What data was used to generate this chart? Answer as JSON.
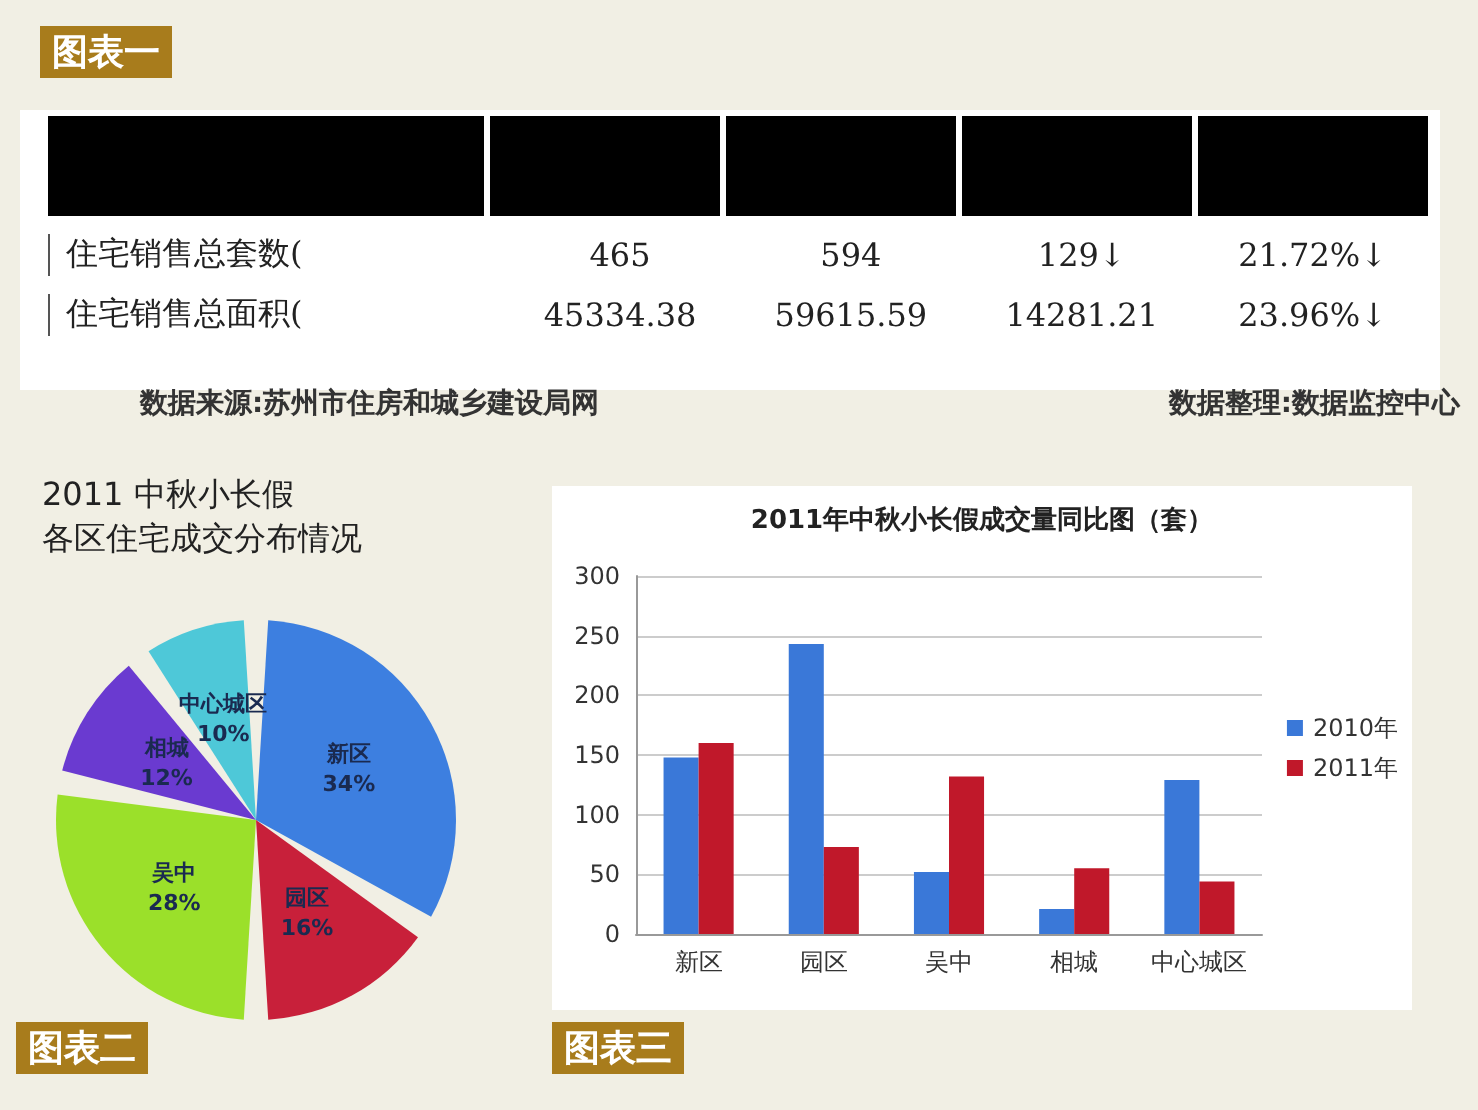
{
  "chart_data": [
    {
      "type": "other",
      "title": "图表一",
      "y_categories": [
        "住宅销售总套数(",
        "住宅销售总面积("
      ],
      "cell_labels": [
        [
          "465",
          "594",
          "129↓",
          "21.72%↓"
        ],
        [
          "45334.38",
          "59615.59",
          "14281.21",
          "23.96%↓"
        ]
      ],
      "annotations": [
        "数据来源:苏州市住房和城乡建设局网",
        "数据整理:数据监控中心"
      ]
    },
    {
      "type": "pie",
      "title": "2011 中秋小长假",
      "subtitle": "各区住宅成交分布情况",
      "annotations": [
        "图表二"
      ],
      "categories": [
        "新区",
        "园区",
        "吴中",
        "相城",
        "中心城区"
      ],
      "values": [
        34,
        16,
        28,
        12,
        10
      ],
      "value_labels": [
        "34%",
        "16%",
        "28%",
        "12%",
        "10%"
      ],
      "colors": [
        "#3d7fe0",
        "#c8203a",
        "#9be02a",
        "#6a3ad0",
        "#4ec8d8"
      ]
    },
    {
      "type": "bar",
      "title": "2011年中秋小长假成交量同比图（套）",
      "annotations": [
        "图表三"
      ],
      "categories": [
        "新区",
        "园区",
        "吴中",
        "相城",
        "中心城区"
      ],
      "series": [
        {
          "name": "2010年",
          "color": "#3a78d8",
          "values": [
            148,
            243,
            52,
            21,
            129
          ]
        },
        {
          "name": "2011年",
          "color": "#c0182a",
          "values": [
            160,
            73,
            132,
            55,
            44
          ]
        }
      ],
      "ylim": [
        0,
        300
      ],
      "yticks": [
        0,
        50,
        100,
        150,
        200,
        250,
        300
      ],
      "grid": "y",
      "legend": "right"
    }
  ]
}
